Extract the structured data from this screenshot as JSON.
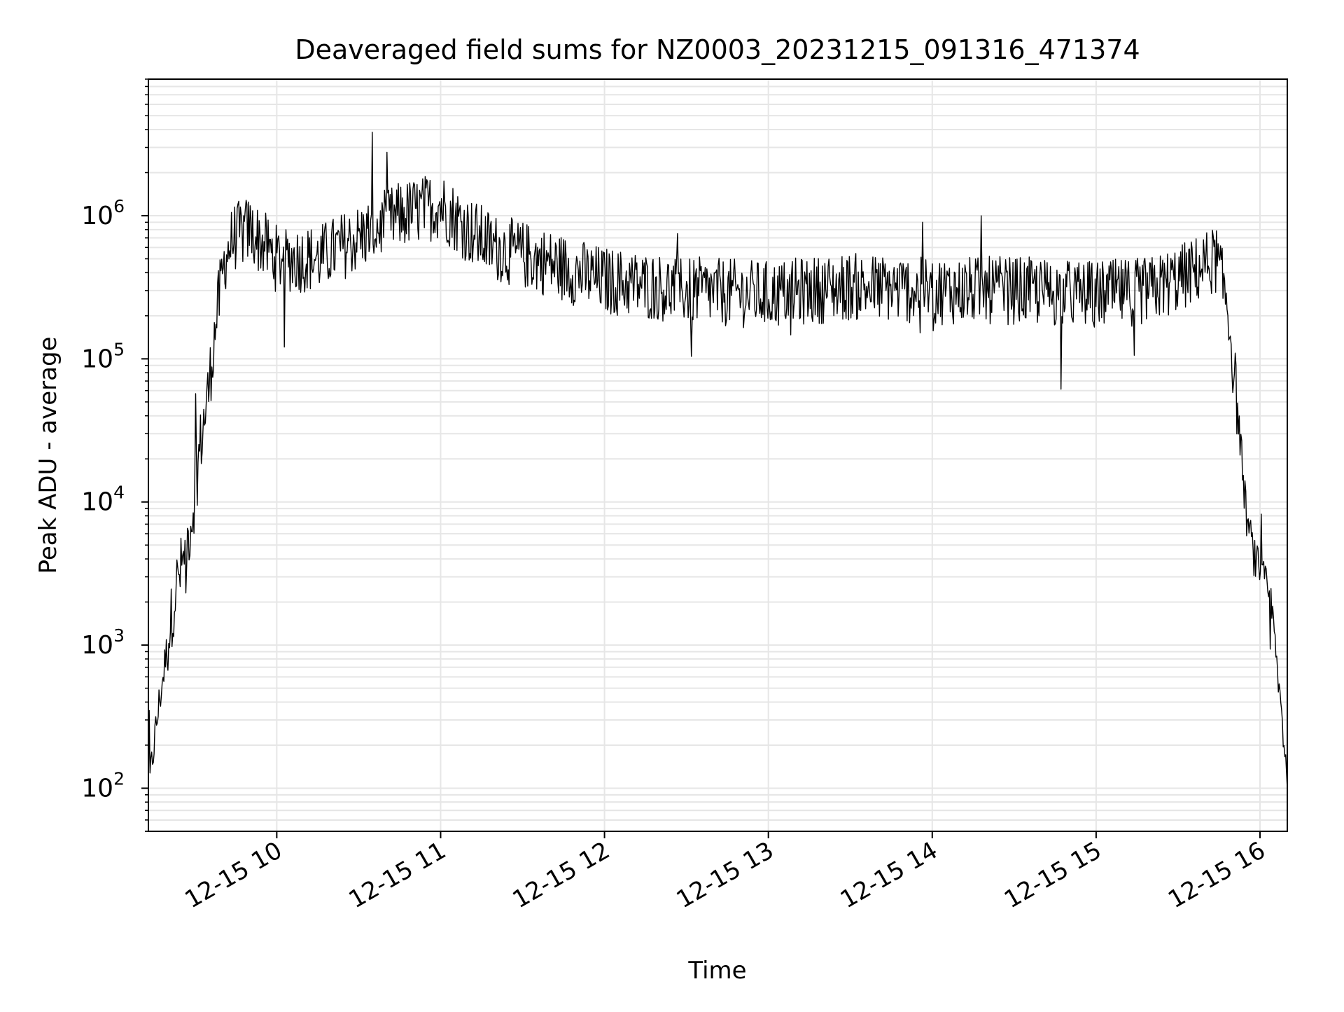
{
  "chart_data": {
    "type": "line",
    "title": "Deaveraged field sums for NZ0003_20231215_091316_471374",
    "xlabel": "Time",
    "ylabel": "Peak ADU - average",
    "yscale": "log",
    "xlim": [
      "2023-12-15T09:13",
      "2023-12-15T16:10"
    ],
    "ylim": [
      50,
      9000000
    ],
    "x_ticks": [
      "12-15 10",
      "12-15 11",
      "12-15 12",
      "12-15 13",
      "12-15 14",
      "12-15 15",
      "12-15 16"
    ],
    "y_ticks": [
      {
        "base": "10",
        "exp": "2",
        "value": 100
      },
      {
        "base": "10",
        "exp": "3",
        "value": 1000
      },
      {
        "base": "10",
        "exp": "4",
        "value": 10000
      },
      {
        "base": "10",
        "exp": "5",
        "value": 100000
      },
      {
        "base": "10",
        "exp": "6",
        "value": 1000000
      }
    ],
    "grid": true,
    "line_color": "#000000",
    "grid_color": "#e6e6e6",
    "series": [
      {
        "x": [
          "2023-12-15T09:13",
          "2023-12-15T09:15",
          "2023-12-15T09:17",
          "2023-12-15T09:20",
          "2023-12-15T09:23",
          "2023-12-15T09:26",
          "2023-12-15T09:29",
          "2023-12-15T09:32",
          "2023-12-15T09:35",
          "2023-12-15T09:38",
          "2023-12-15T09:41",
          "2023-12-15T09:44",
          "2023-12-15T09:50",
          "2023-12-15T10:00",
          "2023-12-15T10:15",
          "2023-12-15T10:30",
          "2023-12-15T10:45",
          "2023-12-15T11:00",
          "2023-12-15T11:10",
          "2023-12-15T11:20",
          "2023-12-15T11:35",
          "2023-12-15T11:50",
          "2023-12-15T12:00",
          "2023-12-15T12:30",
          "2023-12-15T13:00",
          "2023-12-15T13:30",
          "2023-12-15T14:00",
          "2023-12-15T14:30",
          "2023-12-15T15:00",
          "2023-12-15T15:20",
          "2023-12-15T15:35",
          "2023-12-15T15:44",
          "2023-12-15T15:48",
          "2023-12-15T15:52",
          "2023-12-15T15:55",
          "2023-12-15T15:58",
          "2023-12-15T16:01",
          "2023-12-15T16:04",
          "2023-12-15T16:07",
          "2023-12-15T16:10"
        ],
        "y": [
          90,
          200,
          400,
          1000,
          2500,
          4000,
          8000,
          25000,
          60000,
          200000,
          500000,
          700000,
          800000,
          500000,
          500000,
          700000,
          1000000,
          1200000,
          800000,
          600000,
          500000,
          400000,
          350000,
          300000,
          280000,
          320000,
          300000,
          300000,
          280000,
          300000,
          400000,
          500000,
          250000,
          40000,
          8000,
          4000,
          3000,
          2000,
          500,
          120
        ]
      }
    ]
  }
}
